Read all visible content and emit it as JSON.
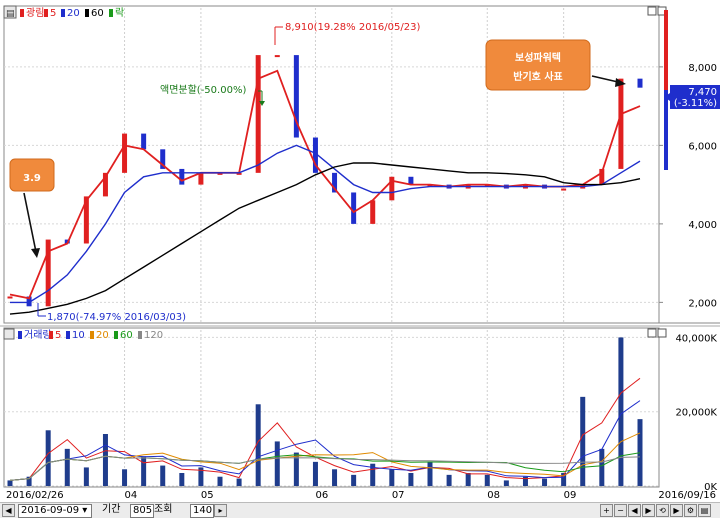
{
  "price_panel": {
    "legend": [
      {
        "label": "광림",
        "color": "#e02020"
      },
      {
        "label": "5",
        "color": "#e02020"
      },
      {
        "label": "20",
        "color": "#1f2ecc"
      },
      {
        "label": "60",
        "color": "#000000"
      },
      {
        "label": "락",
        "color": "#1a9a1a"
      }
    ],
    "y_ticks": [
      "8,000",
      "6,000",
      "4,000",
      "2,000"
    ],
    "current_price": "7,470",
    "current_change": "(-3.11%)"
  },
  "volume_panel": {
    "legend": [
      {
        "label": "거래량",
        "color": "#1f2ecc"
      },
      {
        "label": "5",
        "color": "#e02020"
      },
      {
        "label": "10",
        "color": "#1f2ecc"
      },
      {
        "label": "20",
        "color": "#e08a00"
      },
      {
        "label": "60",
        "color": "#1a9a1a"
      },
      {
        "label": "120",
        "color": "#888888"
      }
    ],
    "y_ticks": [
      "40,000K",
      "20,000K",
      "0K"
    ]
  },
  "x_axis": {
    "ticks": [
      "2016/02/26",
      "04",
      "05",
      "06",
      "07",
      "08",
      "09",
      "2016/09/16"
    ]
  },
  "annotations": {
    "high": "8,910(19.28% 2016/05/23)",
    "low": "1,870(-74.97% 2016/03/03)",
    "split": "액면분할(-50.00%)",
    "callout_left": "3.9",
    "callout_right_line1": "보성파워텍",
    "callout_right_line2": "반기호 사표"
  },
  "bottom_bar": {
    "date": "2016-09-09",
    "period_label": "기간",
    "period_value": "805",
    "view_label": "조회",
    "view_value": "140"
  },
  "chart_data": [
    {
      "type": "line",
      "title": "",
      "x": [
        "2016/02/26",
        "2016/03/03",
        "2016/03/09",
        "2016/03/15",
        "2016/03/21",
        "2016/03/28",
        "2016/04/04",
        "2016/04/11",
        "2016/04/18",
        "2016/04/25",
        "2016/05/02",
        "2016/05/09",
        "2016/05/16",
        "2016/05/20",
        "2016/05/23",
        "2016/05/27",
        "2016/06/03",
        "2016/06/10",
        "2016/06/17",
        "2016/06/24",
        "2016/07/01",
        "2016/07/08",
        "2016/07/15",
        "2016/07/22",
        "2016/07/29",
        "2016/08/05",
        "2016/08/12",
        "2016/08/19",
        "2016/08/26",
        "2016/09/02",
        "2016/09/07",
        "2016/09/09",
        "2016/09/13",
        "2016/09/16"
      ],
      "series": [
        {
          "name": "광림",
          "values": [
            2150,
            1900,
            3600,
            3500,
            4700,
            5300,
            6300,
            5900,
            5400,
            5000,
            5300,
            5300,
            5300,
            8300,
            8300,
            6200,
            5300,
            4800,
            4000,
            4600,
            5200,
            5000,
            5000,
            4900,
            5000,
            5000,
            4900,
            5000,
            4900,
            4900,
            5000,
            5400,
            7700,
            7470
          ]
        },
        {
          "name": "5",
          "values": [
            2200,
            2100,
            3300,
            3500,
            4600,
            5200,
            6000,
            5900,
            5500,
            5100,
            5300,
            5300,
            5300,
            7700,
            7900,
            6600,
            5500,
            4900,
            4300,
            4600,
            5100,
            5000,
            5000,
            4950,
            5000,
            5000,
            4950,
            5000,
            4950,
            4950,
            5000,
            5300,
            6800,
            7000
          ]
        },
        {
          "name": "20",
          "values": [
            2000,
            2000,
            2300,
            2700,
            3300,
            4000,
            4800,
            5200,
            5300,
            5300,
            5300,
            5300,
            5300,
            5500,
            5800,
            6000,
            5800,
            5400,
            5000,
            4800,
            4800,
            4900,
            4950,
            4950,
            4950,
            4950,
            4950,
            4950,
            4950,
            4950,
            4950,
            5000,
            5300,
            5600
          ]
        },
        {
          "name": "60",
          "values": [
            1700,
            1750,
            1850,
            1950,
            2100,
            2300,
            2600,
            2900,
            3200,
            3500,
            3800,
            4100,
            4400,
            4600,
            4800,
            5000,
            5250,
            5450,
            5550,
            5550,
            5500,
            5450,
            5400,
            5350,
            5300,
            5300,
            5280,
            5250,
            5200,
            5050,
            5000,
            5000,
            5050,
            5150
          ]
        }
      ],
      "ylim": [
        1500,
        9500
      ],
      "y_ticks": [
        2000,
        4000,
        6000,
        8000
      ],
      "xlabel": "",
      "ylabel": "",
      "grid": true
    },
    {
      "type": "bar",
      "title": "거래량",
      "unit": "K",
      "categories": [
        "2016/02/26",
        "2016/03/03",
        "2016/03/09",
        "2016/03/15",
        "2016/03/21",
        "2016/03/28",
        "2016/04/04",
        "2016/04/11",
        "2016/04/18",
        "2016/04/25",
        "2016/05/02",
        "2016/05/09",
        "2016/05/16",
        "2016/05/20",
        "2016/05/23",
        "2016/05/27",
        "2016/06/03",
        "2016/06/10",
        "2016/06/17",
        "2016/06/24",
        "2016/07/01",
        "2016/07/08",
        "2016/07/15",
        "2016/07/22",
        "2016/07/29",
        "2016/08/05",
        "2016/08/12",
        "2016/08/19",
        "2016/08/26",
        "2016/09/02",
        "2016/09/07",
        "2016/09/09",
        "2016/09/13",
        "2016/09/16"
      ],
      "values": [
        1500,
        2500,
        15000,
        10000,
        5000,
        14000,
        4500,
        8000,
        5500,
        3500,
        5000,
        2500,
        2000,
        22000,
        12000,
        9000,
        6500,
        4500,
        3000,
        6000,
        4500,
        3500,
        6500,
        3000,
        3500,
        3000,
        1500,
        2500,
        2000,
        3500,
        24000,
        10000,
        40000,
        18000
      ],
      "ylim": [
        0,
        42000
      ],
      "y_ticks": [
        0,
        20000,
        40000
      ],
      "xlabel": "",
      "ylabel": "",
      "grid": true
    }
  ]
}
